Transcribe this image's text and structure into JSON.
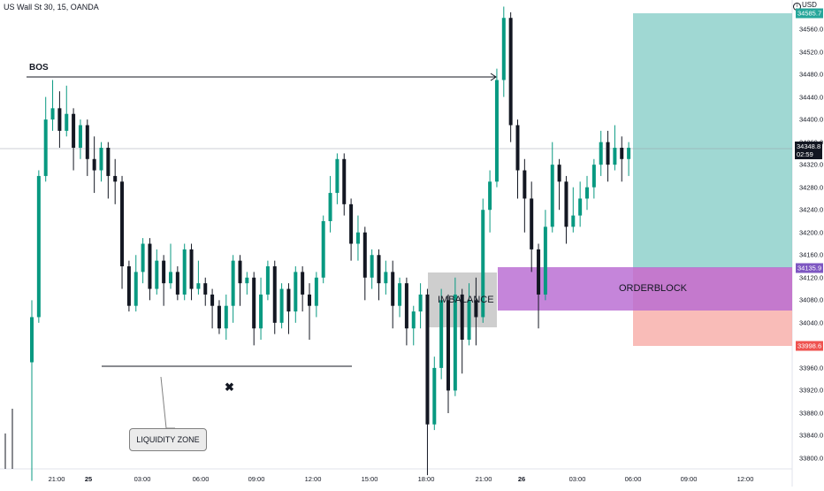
{
  "symbol": "US Wall St 30, 15, OANDA",
  "currency": "USD",
  "price_axis": [
    "34560.0",
    "34520.0",
    "34480.0",
    "34440.0",
    "34400.0",
    "34360.0",
    "34320.0",
    "34280.0",
    "34240.0",
    "34200.0",
    "34160.0",
    "34120.0",
    "34080.0",
    "34040.0",
    "34000.0",
    "33960.0",
    "33920.0",
    "33880.0",
    "33840.0",
    "33800.0"
  ],
  "time_axis": [
    "21:00",
    "25",
    "03:00",
    "06:00",
    "09:00",
    "12:00",
    "15:00",
    "18:00",
    "21:00",
    "26",
    "03:00",
    "06:00",
    "09:00",
    "12:00"
  ],
  "annotations": {
    "bos": "BOS",
    "imbalance": "IMBALANCE",
    "orderblock": "ORDERBLOCK",
    "liquidity_zone": "LIQUIDITY ZONE",
    "marker": "✖"
  },
  "tags": {
    "target": "34585.7",
    "current": "34348.8",
    "countdown": "02:59",
    "entry": "34135.9",
    "stop": "33998.6"
  },
  "colors": {
    "up": "#089981",
    "down": "#131722",
    "target_zone": "#80cbc4",
    "stop_zone": "#f8b0ac",
    "orderblock": "#b86ad2"
  },
  "chart_data": {
    "type": "candlestick",
    "interval": "15",
    "ylim": [
      33780,
      34610
    ],
    "candles": [
      [
        33970,
        34050,
        33760,
        34080
      ],
      [
        34050,
        34300,
        34040,
        34310
      ],
      [
        34300,
        34400,
        34290,
        34440
      ],
      [
        34400,
        34420,
        34380,
        34470
      ],
      [
        34420,
        34380,
        34350,
        34450
      ],
      [
        34380,
        34410,
        34370,
        34460
      ],
      [
        34410,
        34350,
        34310,
        34420
      ],
      [
        34350,
        34390,
        34330,
        34400
      ],
      [
        34390,
        34330,
        34300,
        34400
      ],
      [
        34330,
        34310,
        34270,
        34370
      ],
      [
        34310,
        34350,
        34290,
        34360
      ],
      [
        34350,
        34300,
        34260,
        34360
      ],
      [
        34300,
        34290,
        34250,
        34330
      ],
      [
        34290,
        34140,
        34100,
        34300
      ],
      [
        34140,
        34070,
        34060,
        34150
      ],
      [
        34070,
        34130,
        34060,
        34160
      ],
      [
        34130,
        34180,
        34110,
        34190
      ],
      [
        34180,
        34100,
        34080,
        34190
      ],
      [
        34100,
        34150,
        34090,
        34170
      ],
      [
        34150,
        34110,
        34070,
        34160
      ],
      [
        34110,
        34130,
        34100,
        34180
      ],
      [
        34130,
        34090,
        34080,
        34140
      ],
      [
        34090,
        34170,
        34080,
        34180
      ],
      [
        34170,
        34100,
        34080,
        34180
      ],
      [
        34100,
        34110,
        34090,
        34150
      ],
      [
        34110,
        34090,
        34070,
        34120
      ],
      [
        34090,
        34070,
        34030,
        34100
      ],
      [
        34070,
        34030,
        34020,
        34080
      ],
      [
        34030,
        34070,
        34010,
        34090
      ],
      [
        34070,
        34150,
        34040,
        34160
      ],
      [
        34150,
        34110,
        34070,
        34160
      ],
      [
        34110,
        34120,
        34090,
        34130
      ],
      [
        34120,
        34030,
        34000,
        34130
      ],
      [
        34030,
        34090,
        34010,
        34120
      ],
      [
        34090,
        34140,
        34080,
        34150
      ],
      [
        34140,
        34040,
        34020,
        34150
      ],
      [
        34040,
        34100,
        34030,
        34110
      ],
      [
        34100,
        34060,
        34020,
        34110
      ],
      [
        34060,
        34130,
        34040,
        34140
      ],
      [
        34130,
        34090,
        34060,
        34140
      ],
      [
        34090,
        34070,
        34010,
        34110
      ],
      [
        34070,
        34120,
        34050,
        34130
      ],
      [
        34120,
        34220,
        34110,
        34230
      ],
      [
        34220,
        34270,
        34200,
        34300
      ],
      [
        34270,
        34330,
        34250,
        34340
      ],
      [
        34330,
        34250,
        34230,
        34340
      ],
      [
        34250,
        34180,
        34150,
        34260
      ],
      [
        34180,
        34200,
        34150,
        34230
      ],
      [
        34200,
        34120,
        34080,
        34210
      ],
      [
        34120,
        34160,
        34100,
        34170
      ],
      [
        34160,
        34110,
        34080,
        34170
      ],
      [
        34110,
        34130,
        34090,
        34150
      ],
      [
        34130,
        34070,
        34030,
        34150
      ],
      [
        34070,
        34110,
        34050,
        34120
      ],
      [
        34110,
        34030,
        34000,
        34120
      ],
      [
        34030,
        34060,
        34000,
        34070
      ],
      [
        34060,
        34090,
        34030,
        34110
      ],
      [
        34090,
        33860,
        33770,
        34100
      ],
      [
        33860,
        33960,
        33850,
        33980
      ],
      [
        33960,
        34080,
        33940,
        34100
      ],
      [
        34080,
        33920,
        33880,
        34090
      ],
      [
        33920,
        34090,
        33910,
        34120
      ],
      [
        34090,
        34010,
        33950,
        34100
      ],
      [
        34010,
        34080,
        34000,
        34110
      ],
      [
        34080,
        34050,
        34000,
        34120
      ],
      [
        34050,
        34240,
        34040,
        34260
      ],
      [
        34240,
        34290,
        34200,
        34310
      ],
      [
        34290,
        34470,
        34280,
        34490
      ],
      [
        34470,
        34580,
        34440,
        34600
      ],
      [
        34580,
        34390,
        34360,
        34590
      ],
      [
        34390,
        34310,
        34260,
        34400
      ],
      [
        34310,
        34260,
        34200,
        34330
      ],
      [
        34260,
        34170,
        34130,
        34290
      ],
      [
        34170,
        34090,
        34030,
        34180
      ],
      [
        34090,
        34210,
        34080,
        34240
      ],
      [
        34210,
        34320,
        34200,
        34360
      ],
      [
        34320,
        34290,
        34240,
        34330
      ],
      [
        34290,
        34210,
        34180,
        34300
      ],
      [
        34210,
        34230,
        34200,
        34280
      ],
      [
        34230,
        34260,
        34210,
        34290
      ],
      [
        34260,
        34280,
        34240,
        34300
      ],
      [
        34280,
        34320,
        34260,
        34330
      ],
      [
        34320,
        34360,
        34300,
        34380
      ],
      [
        34360,
        34320,
        34290,
        34380
      ],
      [
        34320,
        34350,
        34310,
        34390
      ],
      [
        34350,
        34330,
        34290,
        34370
      ],
      [
        34330,
        34350,
        34300,
        34360
      ]
    ]
  }
}
